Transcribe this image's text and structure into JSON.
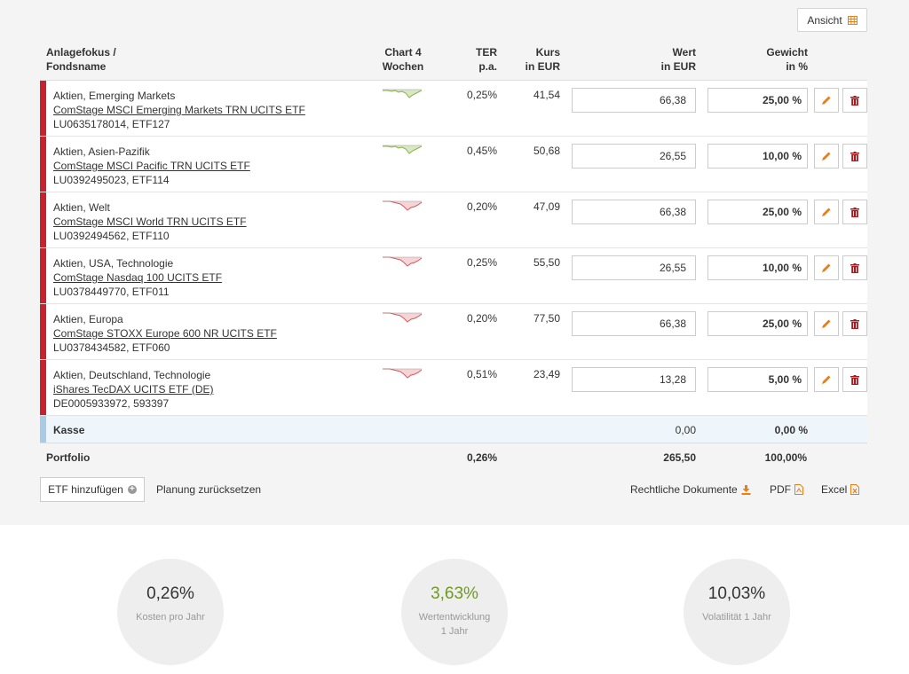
{
  "toolbar": {
    "view_label": "Ansicht"
  },
  "headers": {
    "focus": "Anlagefokus /",
    "fund": "Fondsname",
    "chart1": "Chart 4",
    "chart2": "Wochen",
    "ter1": "TER",
    "ter2": "p.a.",
    "kurs1": "Kurs",
    "kurs2": "in EUR",
    "wert1": "Wert",
    "wert2": "in EUR",
    "gew1": "Gewicht",
    "gew2": "in %"
  },
  "rows": [
    {
      "focus": "Aktien, Emerging Markets",
      "name": "ComStage MSCI Emerging Markets TRN UCITS ETF",
      "isin": "LU0635178014, ETF127",
      "ter": "0,25%",
      "kurs": "41,54",
      "wert": "66,38",
      "gewicht": "25,00 %",
      "trend": "up"
    },
    {
      "focus": "Aktien, Asien-Pazifik",
      "name": "ComStage MSCI Pacific TRN UCITS ETF",
      "isin": "LU0392495023, ETF114",
      "ter": "0,45%",
      "kurs": "50,68",
      "wert": "26,55",
      "gewicht": "10,00 %",
      "trend": "up"
    },
    {
      "focus": "Aktien, Welt",
      "name": "ComStage MSCI World TRN UCITS ETF",
      "isin": "LU0392494562, ETF110",
      "ter": "0,20%",
      "kurs": "47,09",
      "wert": "66,38",
      "gewicht": "25,00 %",
      "trend": "down"
    },
    {
      "focus": "Aktien, USA, Technologie",
      "name": "ComStage Nasdaq 100 UCITS ETF",
      "isin": "LU0378449770, ETF011",
      "ter": "0,25%",
      "kurs": "55,50",
      "wert": "26,55",
      "gewicht": "10,00 %",
      "trend": "down"
    },
    {
      "focus": "Aktien, Europa",
      "name": "ComStage STOXX Europe 600 NR UCITS ETF",
      "isin": "LU0378434582, ETF060",
      "ter": "0,20%",
      "kurs": "77,50",
      "wert": "66,38",
      "gewicht": "25,00 %",
      "trend": "down"
    },
    {
      "focus": "Aktien, Deutschland, Technologie",
      "name": "iShares TecDAX UCITS ETF (DE)",
      "isin": "DE0005933972, 593397",
      "ter": "0,51%",
      "kurs": "23,49",
      "wert": "13,28",
      "gewicht": "5,00 %",
      "trend": "down"
    }
  ],
  "kasse": {
    "label": "Kasse",
    "wert": "0,00",
    "gewicht": "0,00 %"
  },
  "portfolio": {
    "label": "Portfolio",
    "ter": "0,26%",
    "wert": "265,50",
    "gewicht": "100,00%"
  },
  "actions": {
    "add_etf": "ETF hinzufügen",
    "reset": "Planung zurücksetzen",
    "legal_docs": "Rechtliche Dokumente",
    "pdf": "PDF",
    "excel": "Excel"
  },
  "stats": [
    {
      "value": "0,26%",
      "label": "Kosten pro Jahr",
      "color": "#333333"
    },
    {
      "value": "3,63%",
      "label": "Wertentwicklung 1 Jahr",
      "color": "#6f9a1d"
    },
    {
      "value": "10,03%",
      "label": "Volatilität 1 Jahr",
      "color": "#333333"
    }
  ],
  "colors": {
    "equity_bar": "#c7232f",
    "cash_bar": "#a9cbe6",
    "accent_orange": "#e8801a",
    "delete_red": "#a8181f",
    "spark_green": "#8ab04a",
    "spark_red": "#d4585f"
  }
}
